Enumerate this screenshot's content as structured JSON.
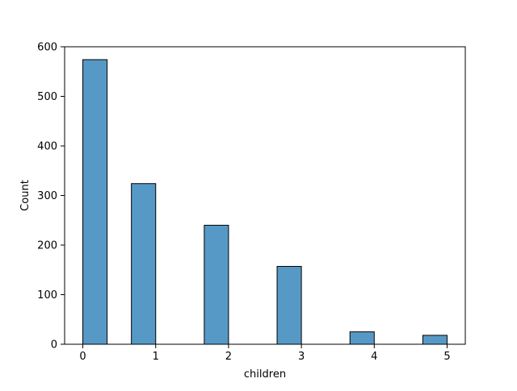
{
  "chart_data": {
    "type": "bar",
    "title": "",
    "xlabel": "children",
    "ylabel": "Count",
    "x_ticks": [
      "0",
      "1",
      "2",
      "3",
      "4",
      "5"
    ],
    "y_ticks": [
      "0",
      "100",
      "200",
      "300",
      "400",
      "500",
      "600"
    ],
    "xlim": [
      -0.25,
      5.25
    ],
    "ylim": [
      0,
      600
    ],
    "bin_width": 0.3333,
    "bins": [
      {
        "start": 0.0,
        "value": 574
      },
      {
        "start": 0.6667,
        "value": 324
      },
      {
        "start": 1.6667,
        "value": 240
      },
      {
        "start": 2.6667,
        "value": 157
      },
      {
        "start": 3.6667,
        "value": 25
      },
      {
        "start": 4.6667,
        "value": 18
      }
    ],
    "bar_color": "#5799c6",
    "edge_color": "#000000",
    "grid": false
  }
}
